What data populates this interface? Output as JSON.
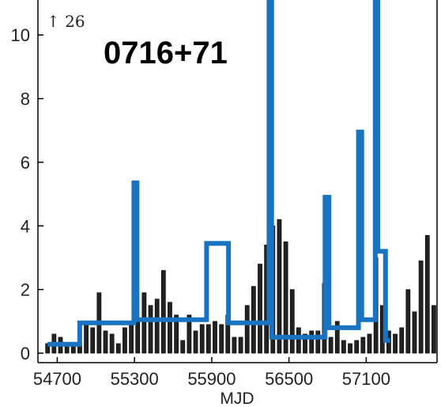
{
  "chart_data": {
    "type": "bar",
    "title": "0716+71",
    "xlabel": "MJD",
    "ylabel": "",
    "annotation": "↑ 26",
    "xlim": [
      54550,
      57320
    ],
    "ylim": [
      0,
      11
    ],
    "xticks": [
      54700,
      55300,
      55900,
      56500,
      57100
    ],
    "yticks": [
      0,
      2,
      4,
      6,
      8,
      10
    ],
    "colors": {
      "histogram": "#222222",
      "blocks": "#1a73c0"
    },
    "histogram": {
      "bin_width": 50,
      "bins": [
        {
          "x": 54625,
          "value": 0.3
        },
        {
          "x": 54675,
          "value": 0.6
        },
        {
          "x": 54725,
          "value": 0.5
        },
        {
          "x": 54775,
          "value": 0.2
        },
        {
          "x": 54825,
          "value": 0.3
        },
        {
          "x": 54875,
          "value": 0.3
        },
        {
          "x": 54925,
          "value": 1.0
        },
        {
          "x": 54975,
          "value": 0.8
        },
        {
          "x": 55025,
          "value": 1.9
        },
        {
          "x": 55075,
          "value": 0.7
        },
        {
          "x": 55125,
          "value": 0.6
        },
        {
          "x": 55175,
          "value": 0.3
        },
        {
          "x": 55225,
          "value": 0.8
        },
        {
          "x": 55275,
          "value": 0.9
        },
        {
          "x": 55325,
          "value": 1.0
        },
        {
          "x": 55375,
          "value": 1.9
        },
        {
          "x": 55425,
          "value": 1.5
        },
        {
          "x": 55475,
          "value": 1.7
        },
        {
          "x": 55525,
          "value": 2.6
        },
        {
          "x": 55575,
          "value": 1.6
        },
        {
          "x": 55625,
          "value": 1.2
        },
        {
          "x": 55675,
          "value": 0.4
        },
        {
          "x": 55725,
          "value": 1.2
        },
        {
          "x": 55775,
          "value": 0.7
        },
        {
          "x": 55825,
          "value": 0.9
        },
        {
          "x": 55875,
          "value": 0.9
        },
        {
          "x": 55925,
          "value": 1.0
        },
        {
          "x": 55975,
          "value": 0.9
        },
        {
          "x": 56025,
          "value": 1.2
        },
        {
          "x": 56075,
          "value": 0.5
        },
        {
          "x": 56125,
          "value": 0.5
        },
        {
          "x": 56175,
          "value": 1.5
        },
        {
          "x": 56225,
          "value": 2.1
        },
        {
          "x": 56275,
          "value": 2.8
        },
        {
          "x": 56325,
          "value": 3.4
        },
        {
          "x": 56375,
          "value": 4.0
        },
        {
          "x": 56425,
          "value": 4.2
        },
        {
          "x": 56475,
          "value": 3.5
        },
        {
          "x": 56525,
          "value": 2.0
        },
        {
          "x": 56575,
          "value": 0.8
        },
        {
          "x": 56625,
          "value": 0.6
        },
        {
          "x": 56675,
          "value": 0.7
        },
        {
          "x": 56725,
          "value": 0.7
        },
        {
          "x": 56775,
          "value": 2.2
        },
        {
          "x": 56825,
          "value": 0.5
        },
        {
          "x": 56875,
          "value": 1.0
        },
        {
          "x": 56925,
          "value": 0.4
        },
        {
          "x": 56975,
          "value": 0.3
        },
        {
          "x": 57025,
          "value": 0.4
        },
        {
          "x": 57075,
          "value": 0.5
        },
        {
          "x": 57125,
          "value": 0.6
        },
        {
          "x": 57175,
          "value": 3.0
        },
        {
          "x": 57225,
          "value": 1.5
        },
        {
          "x": 57275,
          "value": 0.7
        },
        {
          "x": 57325,
          "value": 0.6
        },
        {
          "x": 57375,
          "value": 0.8
        },
        {
          "x": 57425,
          "value": 2.0
        },
        {
          "x": 57475,
          "value": 1.3
        },
        {
          "x": 57525,
          "value": 2.9
        },
        {
          "x": 57575,
          "value": 3.7
        },
        {
          "x": 57625,
          "value": 1.5
        }
      ]
    },
    "blocks": {
      "series_line": [
        [
          54625,
          0.28
        ],
        [
          54875,
          0.28
        ],
        [
          54875,
          0.95
        ],
        [
          55295,
          0.95
        ],
        [
          55295,
          5.35
        ],
        [
          55320,
          5.35
        ],
        [
          55320,
          1.05
        ],
        [
          55860,
          1.05
        ],
        [
          55860,
          3.45
        ],
        [
          56030,
          3.45
        ],
        [
          56030,
          0.95
        ],
        [
          56345,
          0.95
        ],
        [
          56345,
          11.2
        ],
        [
          56365,
          11.2
        ],
        [
          56365,
          0.5
        ],
        [
          56780,
          0.5
        ],
        [
          56780,
          4.9
        ],
        [
          56810,
          4.9
        ],
        [
          56810,
          0.8
        ],
        [
          57040,
          0.8
        ],
        [
          57040,
          6.95
        ],
        [
          57065,
          6.95
        ],
        [
          57065,
          1.05
        ],
        [
          57170,
          1.05
        ],
        [
          57170,
          11.2
        ],
        [
          57190,
          11.2
        ],
        [
          57190,
          3.2
        ],
        [
          57250,
          3.2
        ],
        [
          57250,
          0.4
        ],
        [
          57285,
          0.4
        ]
      ]
    }
  }
}
